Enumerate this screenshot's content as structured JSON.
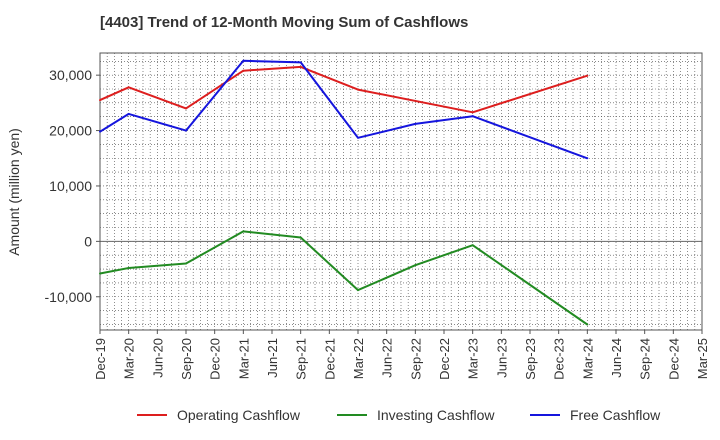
{
  "chart_data": {
    "type": "line",
    "title": "[4403]  Trend of 12-Month Moving Sum of Cashflows",
    "xlabel": "",
    "ylabel": "Amount (million yen)",
    "ylim": [
      -16000,
      34000
    ],
    "y_ticks": [
      -10000,
      0,
      10000,
      20000,
      30000
    ],
    "y_tick_labels": [
      "-10,000",
      "0",
      "10,000",
      "20,000",
      "30,000"
    ],
    "categories": [
      "Dec-19",
      "Mar-20",
      "Jun-20",
      "Sep-20",
      "Dec-20",
      "Mar-21",
      "Jun-21",
      "Sep-21",
      "Dec-21",
      "Mar-22",
      "Jun-22",
      "Sep-22",
      "Dec-22",
      "Mar-23",
      "Jun-23",
      "Sep-23",
      "Dec-23",
      "Mar-24",
      "Jun-24",
      "Sep-24",
      "Dec-24",
      "Mar-25"
    ],
    "grid": true,
    "legend_position": "bottom",
    "series": [
      {
        "name": "Operating Cashflow",
        "color": "#dd1e1e",
        "values": [
          25500,
          27800,
          null,
          24000,
          null,
          30800,
          null,
          31500,
          null,
          27400,
          null,
          null,
          null,
          23300,
          null,
          null,
          null,
          29900,
          null,
          null,
          null,
          null
        ]
      },
      {
        "name": "Investing Cashflow",
        "color": "#228b22",
        "values": [
          -5800,
          -4800,
          null,
          -4000,
          null,
          1800,
          null,
          700,
          null,
          -8800,
          null,
          -4300,
          null,
          -700,
          null,
          null,
          null,
          -15000,
          null,
          null,
          null,
          null
        ]
      },
      {
        "name": "Free Cashflow",
        "color": "#1515dd",
        "values": [
          19800,
          23000,
          null,
          20000,
          null,
          32600,
          null,
          32300,
          null,
          18700,
          null,
          21200,
          null,
          22600,
          null,
          null,
          null,
          15000,
          null,
          null,
          null,
          null
        ]
      }
    ]
  }
}
